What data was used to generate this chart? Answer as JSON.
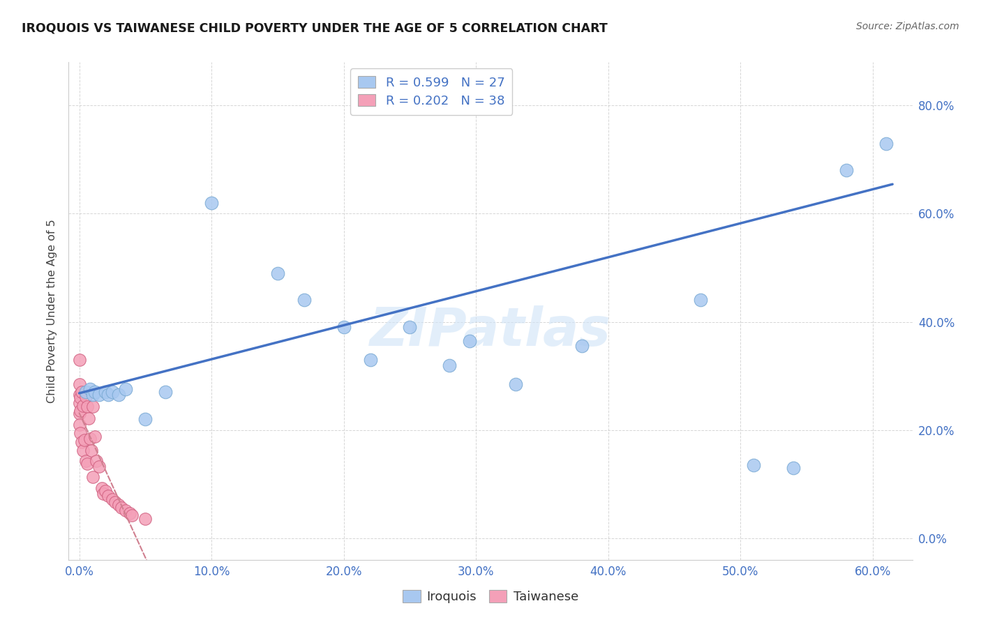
{
  "title": "IROQUOIS VS TAIWANESE CHILD POVERTY UNDER THE AGE OF 5 CORRELATION CHART",
  "source": "Source: ZipAtlas.com",
  "ylabel_label": "Child Poverty Under the Age of 5",
  "watermark": "ZIPatlas",
  "iroquois_color": "#a8c8f0",
  "iroquois_edge": "#7aaad4",
  "taiwanese_color": "#f4a0b8",
  "taiwanese_edge": "#d06080",
  "trend_iroquois": "#4472c4",
  "trend_taiwanese": "#d08090",
  "R_iroquois": 0.599,
  "N_iroquois": 27,
  "R_taiwanese": 0.202,
  "N_taiwanese": 38,
  "xlim": [
    -0.008,
    0.63
  ],
  "ylim": [
    -0.04,
    0.88
  ],
  "xticks": [
    0.0,
    0.1,
    0.2,
    0.3,
    0.4,
    0.5,
    0.6
  ],
  "yticks": [
    0.0,
    0.2,
    0.4,
    0.6,
    0.8
  ],
  "iroquois_x": [
    0.005,
    0.008,
    0.01,
    0.012,
    0.015,
    0.02,
    0.022,
    0.025,
    0.03,
    0.035,
    0.05,
    0.065,
    0.1,
    0.15,
    0.17,
    0.2,
    0.22,
    0.25,
    0.28,
    0.295,
    0.33,
    0.38,
    0.47,
    0.51,
    0.54,
    0.58,
    0.61
  ],
  "iroquois_y": [
    0.27,
    0.275,
    0.265,
    0.27,
    0.265,
    0.27,
    0.265,
    0.27,
    0.265,
    0.275,
    0.22,
    0.27,
    0.62,
    0.49,
    0.44,
    0.39,
    0.33,
    0.39,
    0.32,
    0.365,
    0.285,
    0.355,
    0.44,
    0.135,
    0.13,
    0.68,
    0.73
  ],
  "taiwanese_x": [
    0.0,
    0.0,
    0.0,
    0.0,
    0.0,
    0.0,
    0.001,
    0.001,
    0.001,
    0.002,
    0.002,
    0.003,
    0.003,
    0.004,
    0.005,
    0.005,
    0.006,
    0.006,
    0.007,
    0.008,
    0.009,
    0.01,
    0.01,
    0.012,
    0.013,
    0.015,
    0.017,
    0.018,
    0.02,
    0.022,
    0.025,
    0.027,
    0.03,
    0.032,
    0.035,
    0.038,
    0.04,
    0.05
  ],
  "taiwanese_y": [
    0.33,
    0.285,
    0.265,
    0.25,
    0.23,
    0.21,
    0.26,
    0.235,
    0.195,
    0.27,
    0.178,
    0.245,
    0.162,
    0.182,
    0.262,
    0.143,
    0.243,
    0.138,
    0.222,
    0.184,
    0.162,
    0.243,
    0.113,
    0.188,
    0.143,
    0.132,
    0.093,
    0.082,
    0.087,
    0.078,
    0.072,
    0.067,
    0.062,
    0.056,
    0.051,
    0.046,
    0.042,
    0.036
  ]
}
